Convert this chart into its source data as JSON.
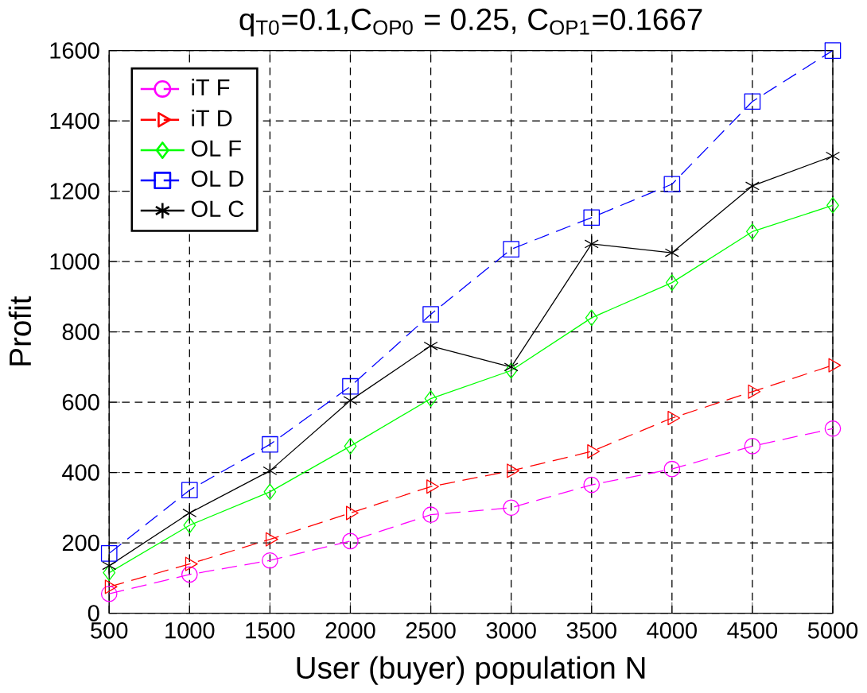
{
  "chart_data": {
    "type": "line",
    "title": "q$_{T0}$=0.1,C$_{OP0}$ = 0.25, C$_{OP1}$=0.1667",
    "xlabel": "User (buyer) population N",
    "ylabel": "Profit",
    "x": [
      500,
      1000,
      1500,
      2000,
      2500,
      3000,
      3500,
      4000,
      4500,
      5000
    ],
    "series": [
      {
        "name": "iT F",
        "color": "#ff00ff",
        "marker": "circle",
        "line_style": "dashed",
        "values": [
          55,
          110,
          150,
          205,
          280,
          300,
          365,
          410,
          475,
          525
        ]
      },
      {
        "name": "iT D",
        "color": "#ff0000",
        "marker": "triangle",
        "line_style": "dashed",
        "values": [
          75,
          140,
          210,
          285,
          360,
          405,
          460,
          555,
          630,
          705
        ]
      },
      {
        "name": "OL F",
        "color": "#00ff00",
        "marker": "diamond",
        "line_style": "solid",
        "values": [
          115,
          250,
          345,
          475,
          610,
          690,
          840,
          940,
          1085,
          1160
        ]
      },
      {
        "name": "OL D",
        "color": "#0000ff",
        "marker": "square",
        "line_style": "dashed",
        "values": [
          170,
          350,
          480,
          645,
          850,
          1035,
          1125,
          1220,
          1455,
          1600
        ]
      },
      {
        "name": "OL C",
        "color": "#000000",
        "marker": "cross",
        "line_style": "solid",
        "values": [
          135,
          285,
          405,
          605,
          760,
          700,
          1050,
          1025,
          1215,
          1300
        ]
      }
    ],
    "xlim": [
      500,
      5000
    ],
    "xticks": [
      500,
      1000,
      1500,
      2000,
      2500,
      3000,
      3500,
      4000,
      4500,
      5000
    ],
    "ylim": [
      0,
      1600
    ],
    "yticks": [
      0,
      200,
      400,
      600,
      800,
      1000,
      1200,
      1400,
      1600
    ],
    "grid": true,
    "legend": "top left"
  }
}
